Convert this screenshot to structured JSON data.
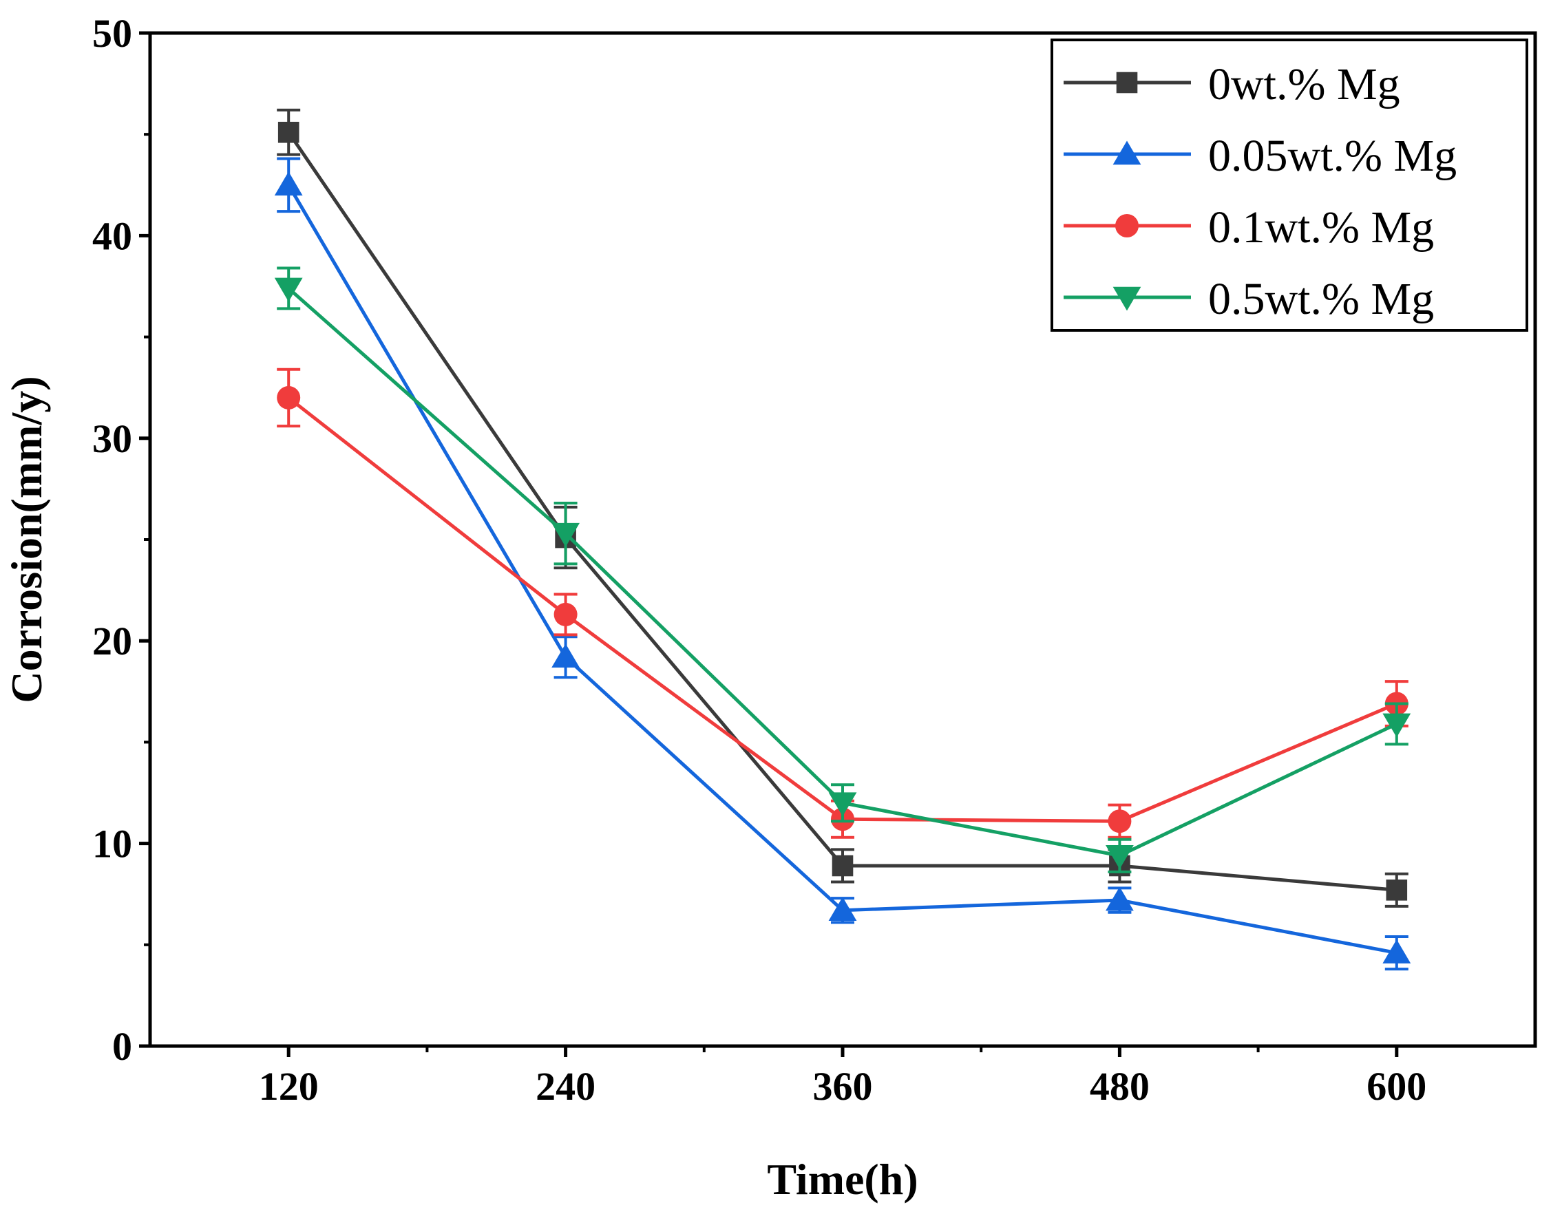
{
  "chart_data": {
    "type": "line",
    "title": "",
    "xlabel": "Time(h)",
    "ylabel": "Corrosion(mm/y)",
    "x": [
      120,
      240,
      360,
      480,
      600
    ],
    "xticks": [
      "120",
      "240",
      "360",
      "480",
      "600"
    ],
    "xlim": [
      60,
      660
    ],
    "ylim": [
      0,
      50
    ],
    "yticks": [
      "0",
      "10",
      "20",
      "30",
      "40",
      "50"
    ],
    "grid": false,
    "legend_position": "top-right",
    "series": [
      {
        "name": "0wt.% Mg",
        "color": "#3a3a3a",
        "marker": "square",
        "values": [
          45.1,
          25.1,
          8.9,
          8.9,
          7.7
        ],
        "errors": [
          1.1,
          1.5,
          0.8,
          0.8,
          0.8
        ]
      },
      {
        "name": "0.05wt.% Mg",
        "color": "#1466dc",
        "marker": "triangle-up",
        "values": [
          42.5,
          19.2,
          6.7,
          7.2,
          4.6
        ],
        "errors": [
          1.3,
          1.0,
          0.6,
          0.6,
          0.8
        ]
      },
      {
        "name": "0.1wt.% Mg",
        "color": "#f03c3c",
        "marker": "circle",
        "values": [
          32.0,
          21.3,
          11.2,
          11.1,
          16.9
        ],
        "errors": [
          1.4,
          1.0,
          0.9,
          0.8,
          1.1
        ]
      },
      {
        "name": "0.5wt.% Mg",
        "color": "#14a064",
        "marker": "triangle-down",
        "values": [
          37.4,
          25.3,
          12.0,
          9.4,
          15.9
        ],
        "errors": [
          1.0,
          1.5,
          0.9,
          0.8,
          1.0
        ]
      }
    ]
  }
}
